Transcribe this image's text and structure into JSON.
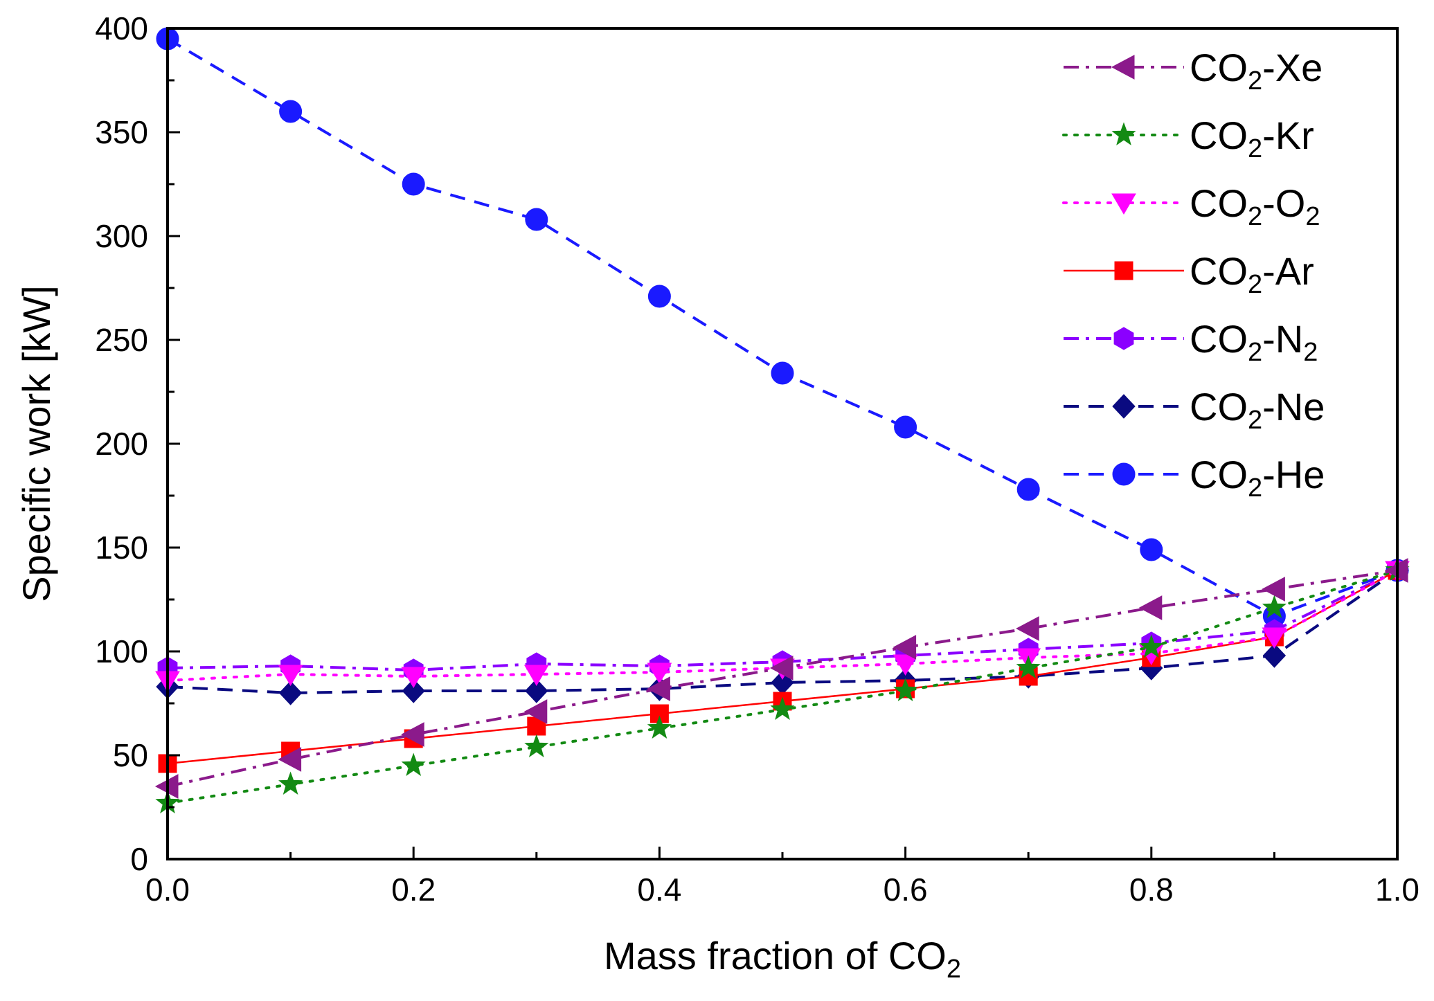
{
  "chart_data": {
    "type": "line",
    "title": "",
    "xlabel": "Mass fraction of CO",
    "xlabel_sub": "2",
    "ylabel": "Specific work [kW]",
    "xlim": [
      0,
      1
    ],
    "ylim": [
      0,
      400
    ],
    "grid": false,
    "legend_position": "top-right",
    "x": [
      0.0,
      0.1,
      0.2,
      0.3,
      0.4,
      0.5,
      0.6,
      0.7,
      0.8,
      0.9,
      1.0
    ],
    "x_ticks": [
      "0.0",
      "0.2",
      "0.4",
      "0.6",
      "0.8",
      "1.0"
    ],
    "y_ticks": [
      "0",
      "50",
      "100",
      "150",
      "200",
      "250",
      "300",
      "350",
      "400"
    ],
    "series": [
      {
        "name": "CO2-Xe",
        "label_main": "CO",
        "label_sub1": "2",
        "label_rest": "-Xe",
        "label_sub2": "",
        "color": "#8B1A8B",
        "marker": "triangle-left",
        "dash": "dashdot",
        "values": [
          35,
          48,
          60,
          71,
          82,
          92,
          102,
          111,
          121,
          130,
          139
        ]
      },
      {
        "name": "CO2-Kr",
        "label_main": "CO",
        "label_sub1": "2",
        "label_rest": "-Kr",
        "label_sub2": "",
        "color": "#138A13",
        "marker": "star",
        "dash": "dot",
        "values": [
          27,
          36,
          45,
          54,
          63,
          72,
          81,
          92,
          102,
          121,
          139
        ]
      },
      {
        "name": "CO2-O2",
        "label_main": "CO",
        "label_sub1": "2",
        "label_rest": "-O",
        "label_sub2": "2",
        "color": "#FF00FF",
        "marker": "triangle-down",
        "dash": "dot",
        "values": [
          86,
          89,
          88,
          89,
          90,
          92,
          94,
          97,
          99,
          107,
          139
        ]
      },
      {
        "name": "CO2-Ar",
        "label_main": "CO",
        "label_sub1": "2",
        "label_rest": "-Ar",
        "label_sub2": "",
        "color": "#FF0000",
        "marker": "square",
        "dash": "solid",
        "values": [
          46,
          52,
          58,
          64,
          70,
          76,
          82,
          88,
          97,
          107,
          139
        ]
      },
      {
        "name": "CO2-N2",
        "label_main": "CO",
        "label_sub1": "2",
        "label_rest": "-N",
        "label_sub2": "2",
        "color": "#8B00FF",
        "marker": "hexagon",
        "dash": "dashdot",
        "values": [
          92,
          93,
          91,
          94,
          93,
          95,
          98,
          101,
          104,
          110,
          139
        ]
      },
      {
        "name": "CO2-Ne",
        "label_main": "CO",
        "label_sub1": "2",
        "label_rest": "-Ne",
        "label_sub2": "",
        "color": "#0A0A80",
        "marker": "diamond",
        "dash": "dash",
        "values": [
          83,
          80,
          81,
          81,
          82,
          85,
          86,
          88,
          92,
          98,
          139
        ]
      },
      {
        "name": "CO2-He",
        "label_main": "CO",
        "label_sub1": "2",
        "label_rest": "-He",
        "label_sub2": "",
        "color": "#1A1AFF",
        "marker": "circle",
        "dash": "dash",
        "values": [
          395,
          360,
          325,
          308,
          271,
          234,
          208,
          178,
          149,
          117,
          139
        ]
      }
    ]
  }
}
